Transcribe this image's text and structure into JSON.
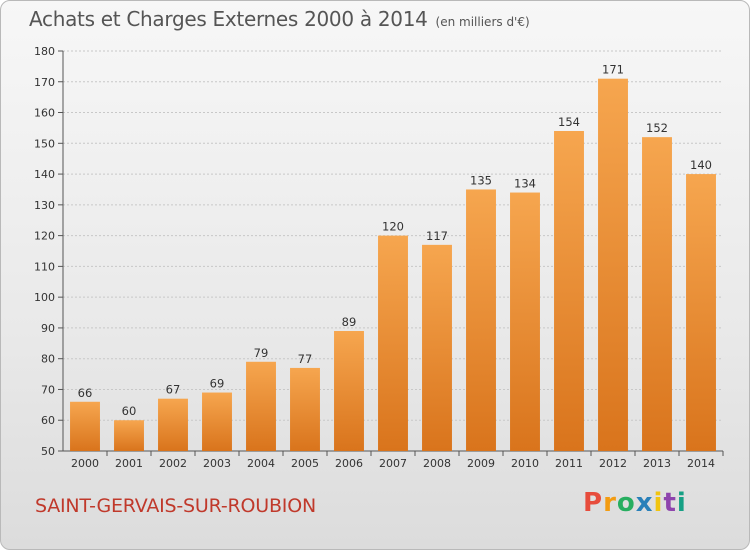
{
  "header": {
    "title": "Achats et Charges Externes 2000 à 2014",
    "unit": "(en milliers d'€)"
  },
  "footer": {
    "commune": "SAINT-GERVAIS-SUR-ROUBION",
    "logo": [
      "P",
      "r",
      "o",
      "x",
      "i",
      "t",
      "i"
    ]
  },
  "colors": {
    "bar_light": "#f6a64f",
    "bar_dark": "#d9741c",
    "commune_text": "#c0392b",
    "logo_letters": [
      "#e74c3c",
      "#f39c12",
      "#27ae60",
      "#2980b9",
      "#f1c40f",
      "#8e44ad",
      "#16a085"
    ]
  },
  "chart_data": {
    "type": "bar",
    "categories": [
      "2000",
      "2001",
      "2002",
      "2003",
      "2004",
      "2005",
      "2006",
      "2007",
      "2008",
      "2009",
      "2010",
      "2011",
      "2012",
      "2013",
      "2014"
    ],
    "values": [
      66,
      60,
      67,
      69,
      79,
      77,
      89,
      120,
      117,
      135,
      134,
      154,
      171,
      152,
      140
    ],
    "ylim": [
      50,
      180
    ],
    "yticks": [
      50,
      60,
      70,
      80,
      90,
      100,
      110,
      120,
      130,
      140,
      150,
      160,
      170,
      180
    ],
    "grid": true,
    "data_labels": true
  }
}
